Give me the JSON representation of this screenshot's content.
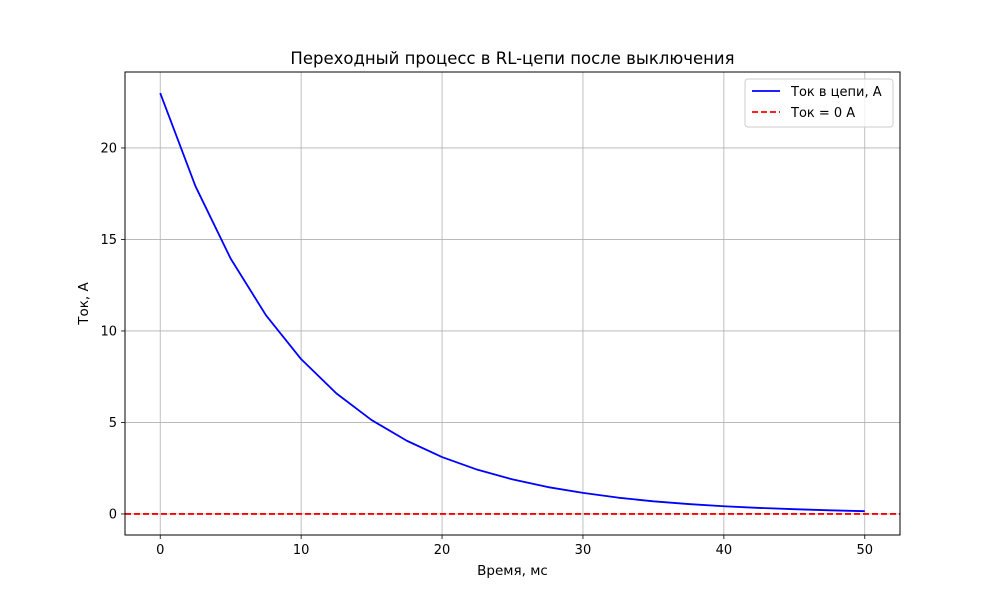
{
  "chart_data": {
    "type": "line",
    "title": "Переходный процесс в RL-цепи после выключения",
    "xlabel": "Время, мс",
    "ylabel": "Ток, А",
    "xlim": [
      -2.5,
      52.5
    ],
    "ylim": [
      -1.15,
      24.15
    ],
    "xticks": [
      0,
      10,
      20,
      30,
      40,
      50
    ],
    "yticks": [
      0,
      5,
      10,
      15,
      20
    ],
    "grid": true,
    "legend_position": "top-right",
    "series": [
      {
        "name": "Ток в цепи, А",
        "style": "solid",
        "color": "#0000ff",
        "x": [
          0,
          2.5,
          5,
          7.5,
          10,
          12.5,
          15,
          17.5,
          20,
          22.5,
          25,
          27.5,
          30,
          32.5,
          35,
          37.5,
          40,
          42.5,
          45,
          47.5,
          50
        ],
        "y": [
          23.0,
          17.91,
          13.95,
          10.86,
          8.46,
          6.59,
          5.13,
          4.0,
          3.11,
          2.42,
          1.89,
          1.47,
          1.15,
          0.89,
          0.69,
          0.54,
          0.42,
          0.33,
          0.26,
          0.2,
          0.15
        ]
      },
      {
        "name": "Ток = 0 А",
        "style": "dashed",
        "color": "#ff0000",
        "y_constant": 0
      }
    ]
  }
}
